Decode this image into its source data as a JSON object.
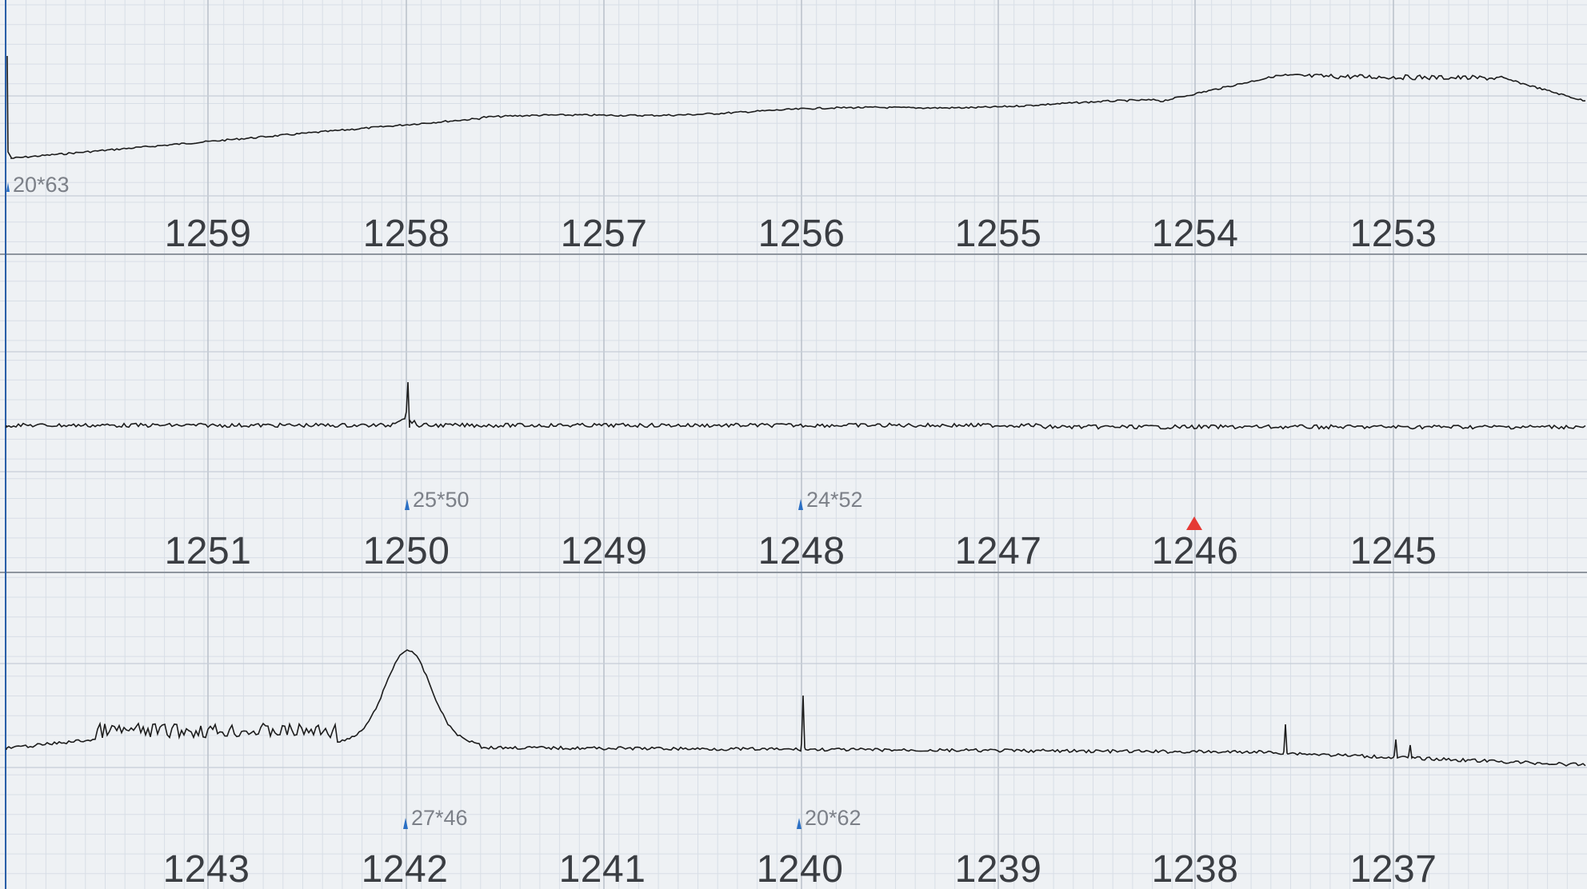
{
  "strip": {
    "rows": [
      {
        "labels": [
          "1259",
          "1258",
          "1257",
          "1256",
          "1255",
          "1254",
          "1253"
        ],
        "markers": [
          {
            "text": "20*63",
            "col": 0
          }
        ]
      },
      {
        "labels": [
          "1251",
          "1250",
          "1249",
          "1248",
          "1247",
          "1246",
          "1245"
        ],
        "markers": [
          {
            "text": "25*50",
            "col": 1
          },
          {
            "text": "24*52",
            "col": 3
          }
        ]
      },
      {
        "labels": [
          "1243",
          "1242",
          "1241",
          "1240",
          "1239",
          "1238",
          "1237"
        ],
        "markers": [
          {
            "text": "27*46",
            "col": 1
          },
          {
            "text": "20*62",
            "col": 3
          }
        ]
      }
    ]
  },
  "colors": {
    "paper": "#eef1f4",
    "grid_minor": "#d6dce4",
    "grid_major": "#b9c1cc",
    "trace": "#1c1c1c",
    "marker": "#2a6fc4",
    "event_triangle": "#e53935"
  }
}
